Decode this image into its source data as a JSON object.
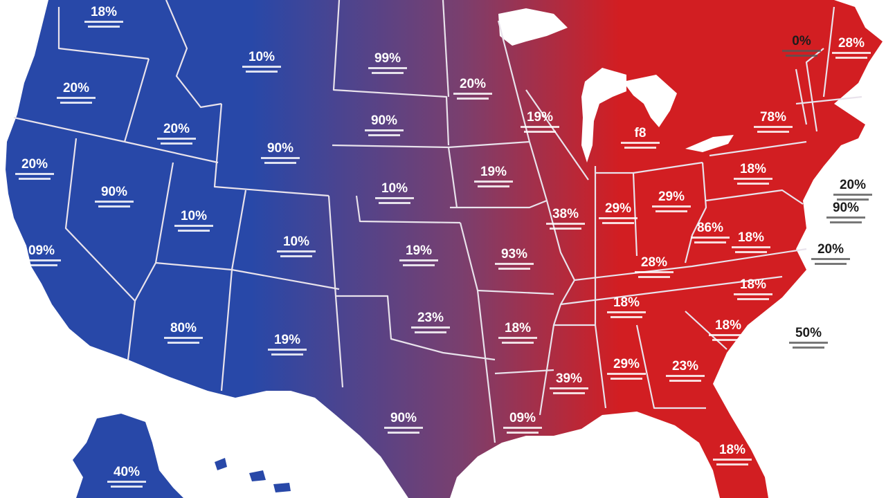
{
  "map": {
    "colors": {
      "west": "#2848a8",
      "middle": "#7a3f6e",
      "east": "#d21e22",
      "border": "#e9e3ec",
      "ocean": "#ffffff"
    },
    "state_labels": [
      {
        "id": "wa",
        "text": "18%"
      },
      {
        "id": "or",
        "text": "20%"
      },
      {
        "id": "ca-north",
        "text": "20%"
      },
      {
        "id": "ca-south",
        "text": "09%"
      },
      {
        "id": "nv",
        "text": "90%"
      },
      {
        "id": "id",
        "text": "20%"
      },
      {
        "id": "mt",
        "text": "10%"
      },
      {
        "id": "wy",
        "text": "90%"
      },
      {
        "id": "ut",
        "text": "10%"
      },
      {
        "id": "co",
        "text": "10%"
      },
      {
        "id": "az",
        "text": "80%"
      },
      {
        "id": "nm",
        "text": "19%"
      },
      {
        "id": "nd",
        "text": "99%"
      },
      {
        "id": "sd",
        "text": "90%"
      },
      {
        "id": "ne",
        "text": "10%"
      },
      {
        "id": "ks",
        "text": "19%"
      },
      {
        "id": "ok",
        "text": "23%"
      },
      {
        "id": "tx",
        "text": "90%"
      },
      {
        "id": "mn",
        "text": "20%"
      },
      {
        "id": "ia",
        "text": "19%"
      },
      {
        "id": "mo",
        "text": "93%"
      },
      {
        "id": "ar",
        "text": "18%"
      },
      {
        "id": "la",
        "text": "09%"
      },
      {
        "id": "wi",
        "text": "19%"
      },
      {
        "id": "mi",
        "text": "f8"
      },
      {
        "id": "il",
        "text": "38%"
      },
      {
        "id": "in",
        "text": "29%"
      },
      {
        "id": "oh",
        "text": "29%"
      },
      {
        "id": "ky",
        "text": "28%"
      },
      {
        "id": "tn",
        "text": "18%"
      },
      {
        "id": "ms",
        "text": "39%"
      },
      {
        "id": "al",
        "text": "29%"
      },
      {
        "id": "ga",
        "text": "23%"
      },
      {
        "id": "fl",
        "text": "18%"
      },
      {
        "id": "sc",
        "text": "18%"
      },
      {
        "id": "nc",
        "text": "18%"
      },
      {
        "id": "va",
        "text": "18%"
      },
      {
        "id": "wv",
        "text": "86%"
      },
      {
        "id": "pa",
        "text": "18%"
      },
      {
        "id": "ny",
        "text": "78%"
      },
      {
        "id": "me",
        "text": "28%"
      },
      {
        "id": "ak",
        "text": "40%"
      }
    ],
    "outside_labels": [
      {
        "id": "ne-coast-1",
        "text": "0%"
      },
      {
        "id": "nj",
        "text": "20%"
      },
      {
        "id": "de",
        "text": "90%"
      },
      {
        "id": "md",
        "text": "20%"
      },
      {
        "id": "atlantic",
        "text": "50%"
      }
    ]
  }
}
